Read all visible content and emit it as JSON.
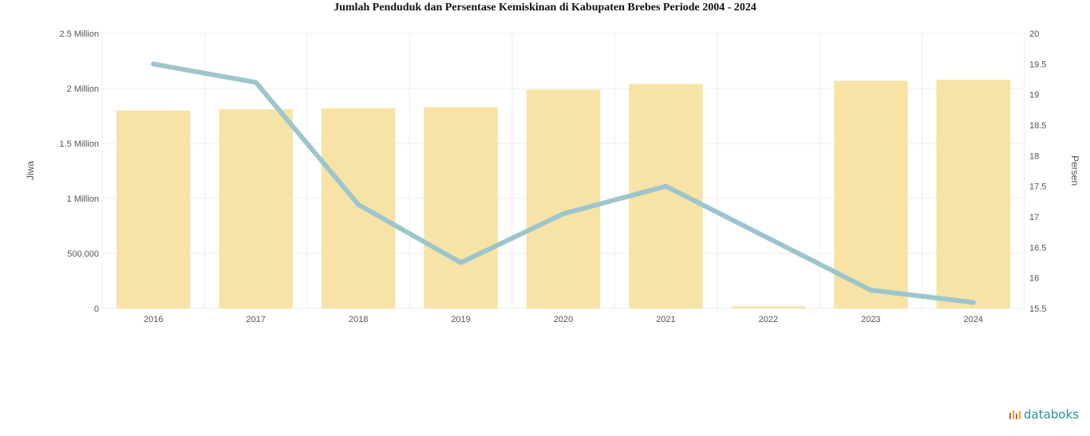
{
  "title": "Jumlah Penduduk dan Persentase Kemiskinan di Kabupaten Brebes Periode 2004 - 2024",
  "brand": {
    "name": "databoks"
  },
  "chart_data": {
    "type": "bar",
    "title": "Jumlah Penduduk dan Persentase Kemiskinan di Kabupaten Brebes Periode 2004 - 2024",
    "categories": [
      "2016",
      "2017",
      "2018",
      "2019",
      "2020",
      "2021",
      "2022",
      "2023",
      "2024"
    ],
    "left_axis": {
      "label": "Jiwa",
      "ticks": [
        "0",
        "500.000",
        "1 Million",
        "1.5 Million",
        "2 Million",
        "2.5 Million"
      ],
      "ylim": [
        0,
        2500000
      ]
    },
    "right_axis": {
      "label": "Persen",
      "ticks": [
        "15.5",
        "16",
        "16.5",
        "17",
        "17.5",
        "18",
        "18.5",
        "19",
        "19.5",
        "20"
      ],
      "ylim": [
        15.5,
        20
      ]
    },
    "series": [
      {
        "type": "bar",
        "axis": "left",
        "color": "#f7e3a6",
        "values": [
          1800000,
          1810000,
          1820000,
          1830000,
          1990000,
          2040000,
          20000,
          2070000,
          2080000
        ]
      },
      {
        "type": "line",
        "axis": "right",
        "color": "#9dc6cc",
        "values": [
          19.5,
          19.2,
          17.2,
          16.25,
          17.05,
          17.5,
          null,
          15.8,
          15.6
        ]
      }
    ],
    "grid": true
  }
}
